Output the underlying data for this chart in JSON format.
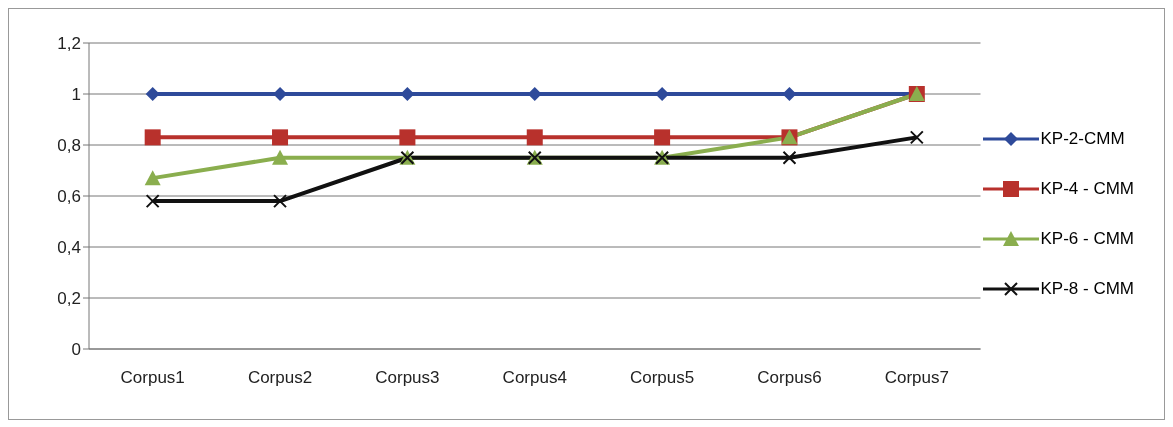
{
  "chart_data": {
    "type": "line",
    "categories": [
      "Corpus1",
      "Corpus2",
      "Corpus3",
      "Corpus4",
      "Corpus5",
      "Corpus6",
      "Corpus7"
    ],
    "series": [
      {
        "name": "KP-2-CMM",
        "color": "#2e4a9a",
        "marker": "diamond",
        "values": [
          1,
          1,
          1,
          1,
          1,
          1,
          1
        ]
      },
      {
        "name": "KP-4 - CMM",
        "color": "#b8312c",
        "marker": "square",
        "values": [
          0.83,
          0.83,
          0.83,
          0.83,
          0.83,
          0.83,
          1
        ]
      },
      {
        "name": "KP-6 - CMM",
        "color": "#8aae4e",
        "marker": "triangle",
        "values": [
          0.67,
          0.75,
          0.75,
          0.75,
          0.75,
          0.83,
          1
        ]
      },
      {
        "name": "KP-8 - CMM",
        "color": "#111111",
        "marker": "cross",
        "values": [
          0.58,
          0.58,
          0.75,
          0.75,
          0.75,
          0.75,
          0.83
        ]
      }
    ],
    "ylim": [
      0,
      1.2
    ],
    "yticks": [
      0,
      {
        "value": 0.2,
        "label": "0,2"
      },
      {
        "value": 0.4,
        "label": "0,4"
      },
      {
        "value": 0.6,
        "label": "0,6"
      },
      {
        "value": 0.8,
        "label": "0,8"
      },
      1,
      {
        "value": 1.2,
        "label": "1,2"
      }
    ],
    "grid": "y",
    "legend": "right",
    "line_style": "solid"
  }
}
